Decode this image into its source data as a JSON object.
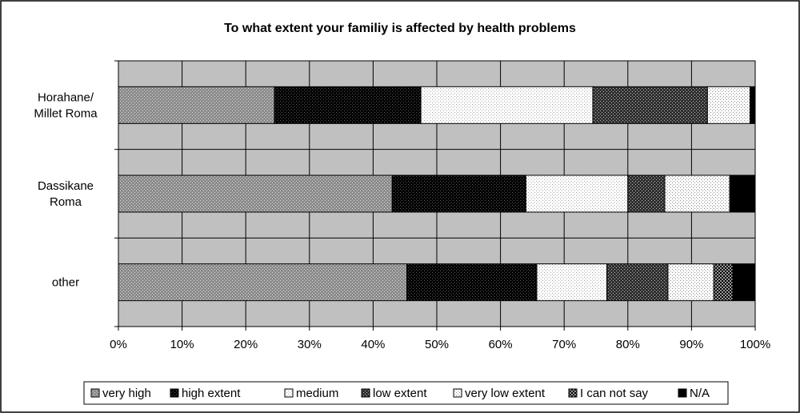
{
  "chart_data": {
    "type": "bar",
    "orientation": "horizontal",
    "stacked": true,
    "percent_stacked": true,
    "title": "To what extent your familiy is affected by health problems",
    "categories": [
      [
        "Horahane/",
        "Millet Roma"
      ],
      [
        "Dassikane",
        "Roma"
      ],
      [
        "other"
      ]
    ],
    "xlim": [
      0,
      100
    ],
    "xticks": [
      0,
      10,
      20,
      30,
      40,
      50,
      60,
      70,
      80,
      90,
      100
    ],
    "tick_suffix": "%",
    "grid": true,
    "legend_position": "bottom",
    "series": [
      {
        "name": "very high",
        "values": [
          24.5,
          43.0,
          45.3
        ],
        "color": "#a3a3a3",
        "pattern": "dense-dots"
      },
      {
        "name": "high extent",
        "values": [
          23.0,
          21.0,
          20.4
        ],
        "color": "#000000",
        "pattern": "black-dots"
      },
      {
        "name": "medium",
        "values": [
          27.0,
          16.0,
          11.0
        ],
        "color": "#ffffff",
        "pattern": "light-dots"
      },
      {
        "name": "low extent",
        "values": [
          18.0,
          5.8,
          9.6
        ],
        "color": "#7a7a7a",
        "pattern": "dark-dots"
      },
      {
        "name": "very low extent",
        "values": [
          6.7,
          10.2,
          7.2
        ],
        "color": "#dcdcdc",
        "pattern": "medium-dots"
      },
      {
        "name": "I can not say",
        "values": [
          0.0,
          0.0,
          3.0
        ],
        "color": "#505050",
        "pattern": "checker"
      },
      {
        "name": "N/A",
        "values": [
          0.8,
          4.0,
          3.5
        ],
        "color": "#000000",
        "pattern": "solid"
      }
    ],
    "colors": {
      "plot_background": "#c0c0c0",
      "gridline": "#000000",
      "frame": "#000000"
    }
  }
}
